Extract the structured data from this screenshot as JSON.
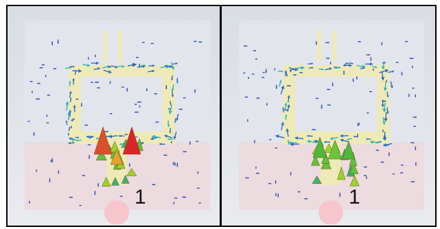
{
  "panels": [
    {
      "label": "1"
    },
    {
      "label": "1"
    }
  ]
}
